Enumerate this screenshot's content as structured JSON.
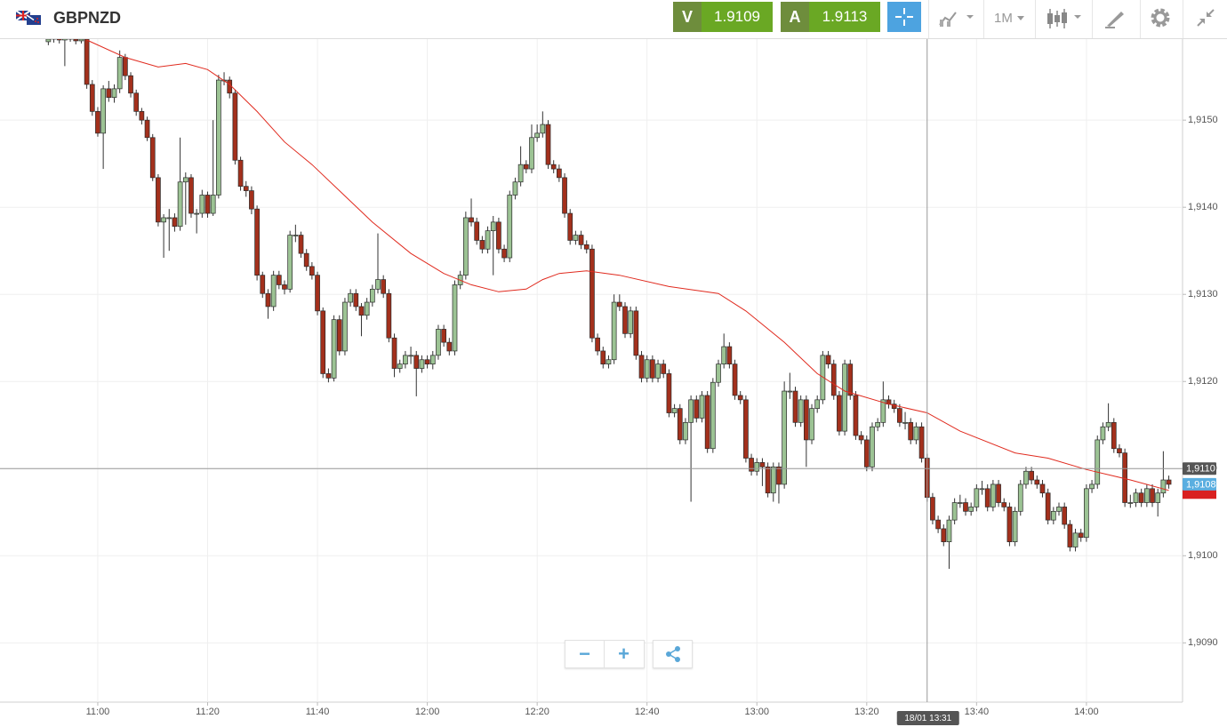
{
  "header": {
    "symbol": "GBPNZD",
    "sell_label": "V",
    "sell_price": "1.9109",
    "buy_label": "A",
    "buy_price": "1.9113",
    "timeframe": "1M"
  },
  "chart_data": {
    "type": "candlestick",
    "up_color": "#9cc394",
    "down_color": "#a3301c",
    "grid": true,
    "x": [
      651,
      652,
      653,
      654,
      655,
      656,
      657,
      658,
      659,
      660,
      661,
      662,
      663,
      664,
      665,
      666,
      667,
      668,
      669,
      670,
      671,
      672,
      673,
      674,
      675,
      676,
      677,
      678,
      679,
      680,
      681,
      682,
      683,
      684,
      685,
      686,
      687,
      688,
      689,
      690,
      691,
      692,
      693,
      694,
      695,
      696,
      697,
      698,
      699,
      700,
      701,
      702,
      703,
      704,
      705,
      706,
      707,
      708,
      709,
      710,
      711,
      712,
      713,
      714,
      715,
      716,
      717,
      718,
      719,
      720,
      721,
      722,
      723,
      724,
      725,
      726,
      727,
      728,
      729,
      730,
      731,
      732,
      733,
      734,
      735,
      736,
      737,
      738,
      739,
      740,
      741,
      742,
      743,
      744,
      745,
      746,
      747,
      748,
      749,
      750,
      751,
      752,
      753,
      754,
      755,
      756,
      757,
      758,
      759,
      760,
      761,
      762,
      763,
      764,
      765,
      766,
      767,
      768,
      769,
      770,
      771,
      772,
      773,
      774,
      775,
      776,
      777,
      778,
      779,
      780,
      781,
      782,
      783,
      784,
      785,
      786,
      787,
      788,
      789,
      790,
      791,
      792,
      793,
      794,
      795,
      796,
      797,
      798,
      799,
      800,
      801,
      802,
      803,
      804,
      805,
      806,
      807,
      808,
      809,
      810,
      811,
      812,
      813,
      814,
      815,
      816,
      817,
      818,
      819,
      820,
      821,
      822,
      823,
      824,
      825,
      826,
      827,
      828,
      829,
      830,
      831,
      832,
      833,
      834,
      835,
      836,
      837,
      838,
      839,
      840,
      841,
      842,
      843,
      844,
      845,
      846,
      847,
      848,
      849,
      850,
      851,
      852,
      853,
      854,
      855
    ],
    "open": [
      1.9159,
      1.91593,
      1.91595,
      1.91592,
      1.91594,
      1.91593,
      1.91591,
      1.91593,
      1.91541,
      1.9151,
      1.91485,
      1.91536,
      1.91526,
      1.91536,
      1.91572,
      1.91551,
      1.91531,
      1.9151,
      1.915,
      1.9148,
      1.91434,
      1.91383,
      1.91388,
      1.91388,
      1.91378,
      1.91429,
      1.91434,
      1.91393,
      1.91393,
      1.91414,
      1.91393,
      1.91414,
      1.91546,
      1.91546,
      1.91531,
      1.91454,
      1.91424,
      1.91419,
      1.91398,
      1.91322,
      1.91301,
      1.91286,
      1.91322,
      1.91311,
      1.91306,
      1.91368,
      1.91368,
      1.91347,
      1.91332,
      1.91322,
      1.91281,
      1.91209,
      1.91204,
      1.91271,
      1.91235,
      1.91291,
      1.91301,
      1.91286,
      1.91276,
      1.91291,
      1.91306,
      1.91317,
      1.91301,
      1.9125,
      1.91215,
      1.9122,
      1.9123,
      1.9123,
      1.91215,
      1.91225,
      1.9122,
      1.9123,
      1.9126,
      1.91245,
      1.91235,
      1.91311,
      1.91322,
      1.91388,
      1.91383,
      1.91362,
      1.91352,
      1.91373,
      1.91383,
      1.91352,
      1.91342,
      1.91414,
      1.91429,
      1.91449,
      1.91444,
      1.9148,
      1.91485,
      1.91495,
      1.91449,
      1.91444,
      1.91434,
      1.91393,
      1.91362,
      1.91368,
      1.91357,
      1.91352,
      1.9125,
      1.91235,
      1.9122,
      1.91225,
      1.91291,
      1.91286,
      1.91255,
      1.91281,
      1.9123,
      1.91204,
      1.91225,
      1.91204,
      1.9122,
      1.91209,
      1.91164,
      1.91169,
      1.91133,
      1.91153,
      1.91179,
      1.91158,
      1.91184,
      1.91123,
      1.91199,
      1.9122,
      1.9124,
      1.9122,
      1.91184,
      1.91179,
      1.91112,
      1.91097,
      1.91107,
      1.91102,
      1.91072,
      1.91102,
      1.91082,
      1.91189,
      1.91189,
      1.91153,
      1.91179,
      1.91133,
      1.91169,
      1.91179,
      1.9123,
      1.9122,
      1.91184,
      1.91143,
      1.9122,
      1.91184,
      1.91138,
      1.91133,
      1.91102,
      1.91148,
      1.91153,
      1.91179,
      1.91174,
      1.91169,
      1.91153,
      1.91153,
      1.91133,
      1.91148,
      1.91112,
      1.91067,
      1.91041,
      1.91031,
      1.91016,
      1.91041,
      1.91061,
      1.91061,
      1.91051,
      1.91056,
      1.91077,
      1.91077,
      1.91056,
      1.91082,
      1.91061,
      1.91056,
      1.91016,
      1.91051,
      1.91082,
      1.91097,
      1.91087,
      1.91082,
      1.91072,
      1.91041,
      1.91051,
      1.91056,
      1.91036,
      1.9101,
      1.91026,
      1.91021,
      1.91077,
      1.91082,
      1.91133,
      1.91148,
      1.91153,
      1.91123,
      1.91118,
      1.91061,
      1.91061,
      1.91072,
      1.91061,
      1.91077,
      1.91061,
      1.91072,
      1.91087
    ],
    "high": [
      1.91597,
      1.91599,
      1.91598,
      1.91597,
      1.91598,
      1.91596,
      1.91597,
      1.91597,
      1.91546,
      1.91515,
      1.9154,
      1.91545,
      1.91541,
      1.9158,
      1.91576,
      1.91555,
      1.91535,
      1.91514,
      1.91504,
      1.91484,
      1.91438,
      1.91392,
      1.91398,
      1.91393,
      1.9148,
      1.9144,
      1.91438,
      1.91398,
      1.9142,
      1.91418,
      1.915,
      1.91552,
      1.91555,
      1.9155,
      1.91535,
      1.91458,
      1.9143,
      1.91424,
      1.91402,
      1.91326,
      1.91306,
      1.91327,
      1.91327,
      1.91316,
      1.91373,
      1.9138,
      1.91372,
      1.91352,
      1.91337,
      1.91326,
      1.91285,
      1.91215,
      1.91276,
      1.91276,
      1.91296,
      1.91306,
      1.91306,
      1.9129,
      1.91296,
      1.91311,
      1.9137,
      1.91322,
      1.91306,
      1.91255,
      1.91225,
      1.91235,
      1.9124,
      1.91235,
      1.9123,
      1.9123,
      1.91235,
      1.91265,
      1.91265,
      1.9125,
      1.91316,
      1.91327,
      1.91395,
      1.9141,
      1.91388,
      1.91367,
      1.91378,
      1.9139,
      1.91388,
      1.91357,
      1.91419,
      1.91434,
      1.9147,
      1.91454,
      1.91495,
      1.91495,
      1.9151,
      1.915,
      1.91454,
      1.91449,
      1.91439,
      1.91398,
      1.91373,
      1.91373,
      1.91362,
      1.91357,
      1.91255,
      1.9124,
      1.9123,
      1.913,
      1.913,
      1.91291,
      1.91286,
      1.91286,
      1.91235,
      1.9123,
      1.9123,
      1.91225,
      1.91225,
      1.91214,
      1.91174,
      1.91174,
      1.91158,
      1.91184,
      1.91184,
      1.91189,
      1.91189,
      1.91204,
      1.91225,
      1.91255,
      1.91245,
      1.91225,
      1.91189,
      1.91184,
      1.91117,
      1.91112,
      1.91112,
      1.91107,
      1.91107,
      1.91107,
      1.912,
      1.9121,
      1.91194,
      1.91184,
      1.91184,
      1.91174,
      1.91184,
      1.91235,
      1.91235,
      1.91225,
      1.91189,
      1.91225,
      1.91225,
      1.91189,
      1.91143,
      1.91138,
      1.91153,
      1.91158,
      1.912,
      1.91184,
      1.91179,
      1.91174,
      1.91165,
      1.91158,
      1.91153,
      1.91153,
      1.91117,
      1.91072,
      1.91046,
      1.91036,
      1.91046,
      1.91066,
      1.9107,
      1.91066,
      1.91061,
      1.91082,
      1.91086,
      1.91082,
      1.91087,
      1.91087,
      1.91066,
      1.91061,
      1.91056,
      1.91087,
      1.91102,
      1.91102,
      1.91092,
      1.91087,
      1.91077,
      1.91056,
      1.91061,
      1.91061,
      1.91041,
      1.91031,
      1.91031,
      1.91082,
      1.91087,
      1.91138,
      1.91153,
      1.91175,
      1.91158,
      1.91128,
      1.91123,
      1.9107,
      1.91077,
      1.91077,
      1.91082,
      1.91082,
      1.91077,
      1.9112,
      1.91092
    ],
    "low": [
      1.91586,
      1.91589,
      1.91588,
      1.91562,
      1.9159,
      1.91587,
      1.91588,
      1.91536,
      1.91505,
      1.91481,
      1.91444,
      1.91521,
      1.9152,
      1.91531,
      1.91546,
      1.91526,
      1.91505,
      1.91495,
      1.91476,
      1.9143,
      1.91378,
      1.91342,
      1.9135,
      1.91372,
      1.91373,
      1.9138,
      1.91388,
      1.9137,
      1.91388,
      1.91388,
      1.9139,
      1.9141,
      1.9154,
      1.91525,
      1.91449,
      1.91419,
      1.91412,
      1.91392,
      1.91316,
      1.91296,
      1.91272,
      1.91281,
      1.91306,
      1.913,
      1.91302,
      1.9136,
      1.91342,
      1.91327,
      1.91317,
      1.91276,
      1.91204,
      1.91199,
      1.912,
      1.9123,
      1.9123,
      1.91286,
      1.91281,
      1.91252,
      1.91271,
      1.91286,
      1.91301,
      1.91296,
      1.91245,
      1.91205,
      1.9121,
      1.91215,
      1.9122,
      1.91183,
      1.9121,
      1.91215,
      1.91214,
      1.91225,
      1.9124,
      1.9123,
      1.9123,
      1.91306,
      1.91317,
      1.91378,
      1.91357,
      1.91347,
      1.91347,
      1.91322,
      1.91347,
      1.91337,
      1.91337,
      1.91409,
      1.91424,
      1.91439,
      1.91439,
      1.91475,
      1.9148,
      1.91444,
      1.91439,
      1.91429,
      1.91388,
      1.91357,
      1.91357,
      1.91352,
      1.91347,
      1.91245,
      1.9123,
      1.91215,
      1.91215,
      1.9122,
      1.91281,
      1.9125,
      1.9125,
      1.91225,
      1.91199,
      1.91199,
      1.91199,
      1.91199,
      1.91204,
      1.91159,
      1.91159,
      1.91128,
      1.91128,
      1.91062,
      1.91153,
      1.91153,
      1.91118,
      1.91118,
      1.91194,
      1.91215,
      1.91215,
      1.91179,
      1.91174,
      1.91107,
      1.91092,
      1.91092,
      1.9108,
      1.91067,
      1.91062,
      1.9106,
      1.91077,
      1.9118,
      1.91148,
      1.91148,
      1.91102,
      1.91128,
      1.91164,
      1.91174,
      1.91215,
      1.91179,
      1.91138,
      1.91138,
      1.91179,
      1.91133,
      1.91128,
      1.91097,
      1.91097,
      1.91143,
      1.91148,
      1.91169,
      1.91164,
      1.91148,
      1.91145,
      1.91128,
      1.91128,
      1.91107,
      1.91062,
      1.91036,
      1.91026,
      1.91011,
      1.90985,
      1.91036,
      1.91055,
      1.91046,
      1.91046,
      1.91051,
      1.9107,
      1.91051,
      1.91051,
      1.91056,
      1.91051,
      1.91011,
      1.91011,
      1.91046,
      1.91077,
      1.91082,
      1.91077,
      1.91067,
      1.91036,
      1.91036,
      1.91046,
      1.91031,
      1.91005,
      1.91005,
      1.91016,
      1.91016,
      1.91072,
      1.91077,
      1.91128,
      1.91143,
      1.91118,
      1.91113,
      1.91056,
      1.91055,
      1.91056,
      1.91056,
      1.91056,
      1.91056,
      1.91045,
      1.91067,
      1.91077
    ],
    "close": [
      1.91593,
      1.91595,
      1.91592,
      1.91594,
      1.91593,
      1.91591,
      1.91593,
      1.91541,
      1.9151,
      1.91485,
      1.91536,
      1.91526,
      1.91536,
      1.91572,
      1.91551,
      1.91531,
      1.9151,
      1.915,
      1.9148,
      1.91434,
      1.91383,
      1.91388,
      1.91388,
      1.91378,
      1.91429,
      1.91434,
      1.91393,
      1.91393,
      1.91414,
      1.91393,
      1.91414,
      1.91546,
      1.91546,
      1.91531,
      1.91454,
      1.91424,
      1.91419,
      1.91398,
      1.91322,
      1.91301,
      1.91286,
      1.91322,
      1.91311,
      1.91306,
      1.91368,
      1.91368,
      1.91347,
      1.91332,
      1.91322,
      1.91281,
      1.91209,
      1.91204,
      1.91271,
      1.91235,
      1.91291,
      1.91301,
      1.91286,
      1.91276,
      1.91291,
      1.91306,
      1.91317,
      1.91301,
      1.9125,
      1.91215,
      1.9122,
      1.9123,
      1.9123,
      1.91215,
      1.91225,
      1.9122,
      1.9123,
      1.9126,
      1.91245,
      1.91235,
      1.91311,
      1.91322,
      1.91388,
      1.91383,
      1.91362,
      1.91352,
      1.91373,
      1.91383,
      1.91352,
      1.91342,
      1.91414,
      1.91429,
      1.91449,
      1.91444,
      1.9148,
      1.91485,
      1.91495,
      1.91449,
      1.91444,
      1.91434,
      1.91393,
      1.91362,
      1.91368,
      1.91357,
      1.91352,
      1.9125,
      1.91235,
      1.9122,
      1.91225,
      1.91291,
      1.91286,
      1.91255,
      1.91281,
      1.9123,
      1.91204,
      1.91225,
      1.91204,
      1.9122,
      1.91209,
      1.91164,
      1.91169,
      1.91133,
      1.91153,
      1.91179,
      1.91158,
      1.91184,
      1.91123,
      1.91199,
      1.9122,
      1.9124,
      1.9122,
      1.91184,
      1.91179,
      1.91112,
      1.91097,
      1.91107,
      1.91102,
      1.91072,
      1.91102,
      1.91082,
      1.91189,
      1.91189,
      1.91153,
      1.91179,
      1.91133,
      1.91169,
      1.91179,
      1.9123,
      1.9122,
      1.91184,
      1.91143,
      1.9122,
      1.91184,
      1.91138,
      1.91133,
      1.91102,
      1.91148,
      1.91153,
      1.91179,
      1.91174,
      1.91169,
      1.91153,
      1.91153,
      1.91133,
      1.91148,
      1.91112,
      1.91067,
      1.91041,
      1.91031,
      1.91016,
      1.91041,
      1.91061,
      1.91061,
      1.91051,
      1.91056,
      1.91077,
      1.91077,
      1.91056,
      1.91082,
      1.91061,
      1.91056,
      1.91016,
      1.91051,
      1.91082,
      1.91097,
      1.91087,
      1.91082,
      1.91072,
      1.91041,
      1.91051,
      1.91056,
      1.91036,
      1.9101,
      1.91026,
      1.91021,
      1.91077,
      1.91082,
      1.91133,
      1.91148,
      1.91153,
      1.91123,
      1.91118,
      1.91061,
      1.91061,
      1.91072,
      1.91061,
      1.91077,
      1.91061,
      1.91072,
      1.91087,
      1.91082
    ],
    "moving_average": {
      "color": "#e02a1e",
      "x": [
        658,
        665,
        671,
        676,
        680,
        684,
        689,
        694,
        699,
        704,
        710,
        717,
        723,
        728,
        733,
        738,
        741,
        744,
        749,
        755,
        764,
        773,
        778,
        785,
        791,
        796,
        804,
        811,
        817,
        827,
        833,
        840,
        848,
        855
      ],
      "values": [
        1.91592,
        1.91572,
        1.91561,
        1.91565,
        1.91558,
        1.91541,
        1.9151,
        1.91475,
        1.91449,
        1.91419,
        1.91383,
        1.91347,
        1.91324,
        1.91311,
        1.91303,
        1.91306,
        1.91317,
        1.91324,
        1.91327,
        1.91322,
        1.91309,
        1.91301,
        1.91281,
        1.91245,
        1.91209,
        1.91189,
        1.91174,
        1.91164,
        1.91143,
        1.91118,
        1.91112,
        1.91099,
        1.91087,
        1.91075
      ]
    },
    "xlim": [
      642.2,
      857.5
    ],
    "xticks": [
      {
        "value": 660,
        "label": "11:00"
      },
      {
        "value": 680,
        "label": "11:20"
      },
      {
        "value": 700,
        "label": "11:40"
      },
      {
        "value": 720,
        "label": "12:00"
      },
      {
        "value": 740,
        "label": "12:20"
      },
      {
        "value": 760,
        "label": "12:40"
      },
      {
        "value": 780,
        "label": "13:00"
      },
      {
        "value": 800,
        "label": "13:20"
      },
      {
        "value": 820,
        "label": "13:40"
      },
      {
        "value": 840,
        "label": "14:00"
      }
    ],
    "ylim": [
      1.90832,
      1.91593
    ],
    "yticks": [
      {
        "value": 1.909,
        "label": "1,9090"
      },
      {
        "value": 1.91,
        "label": "1,9100"
      },
      {
        "value": 1.911,
        "label": "1,9110"
      },
      {
        "value": 1.912,
        "label": "1,9120"
      },
      {
        "value": 1.913,
        "label": "1,9130"
      },
      {
        "value": 1.914,
        "label": "1,9140"
      },
      {
        "value": 1.915,
        "label": "1,9150"
      }
    ],
    "crosshair": {
      "time": 811,
      "time_label": "18/01 13:31",
      "price": 1.911,
      "price_label": "1,9110"
    },
    "last_price": {
      "value": 1.91082,
      "label": "1,9108"
    }
  }
}
